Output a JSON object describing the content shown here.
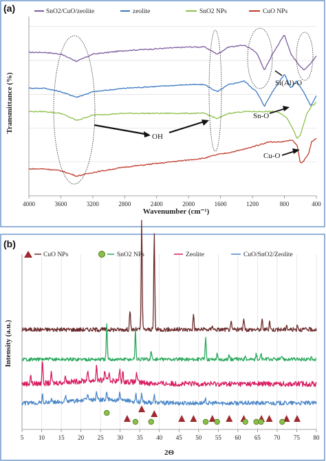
{
  "chart_data": [
    {
      "panel": "(a)",
      "type": "line",
      "xlabel": "Wavenumber (cm⁻¹)",
      "ylabel": "Transmittance (%)",
      "xlim": [
        4000,
        400
      ],
      "x_reversed": true,
      "x_ticks": [
        4000,
        3600,
        3200,
        2800,
        2400,
        2000,
        1600,
        1200,
        800,
        400
      ],
      "grid": "horizontal",
      "legend_position": "top",
      "series": [
        {
          "name": "SnO2/CuO/zeolite",
          "color": "#7b5a9e",
          "offset": 0.8,
          "points": [
            [
              4000,
              0.8
            ],
            [
              3800,
              0.8
            ],
            [
              3600,
              0.79
            ],
            [
              3400,
              0.75
            ],
            [
              3200,
              0.79
            ],
            [
              2800,
              0.81
            ],
            [
              2400,
              0.82
            ],
            [
              2000,
              0.83
            ],
            [
              1800,
              0.83
            ],
            [
              1640,
              0.79
            ],
            [
              1500,
              0.83
            ],
            [
              1300,
              0.84
            ],
            [
              1150,
              0.8
            ],
            [
              1050,
              0.7
            ],
            [
              950,
              0.79
            ],
            [
              800,
              0.9
            ],
            [
              720,
              0.79
            ],
            [
              650,
              0.75
            ],
            [
              560,
              0.7
            ],
            [
              470,
              0.74
            ],
            [
              400,
              0.78
            ]
          ]
        },
        {
          "name": "zeolite",
          "color": "#3b78c0",
          "offset": 0.6,
          "points": [
            [
              4000,
              0.6
            ],
            [
              3800,
              0.6
            ],
            [
              3600,
              0.58
            ],
            [
              3400,
              0.55
            ],
            [
              3200,
              0.58
            ],
            [
              2800,
              0.6
            ],
            [
              2400,
              0.61
            ],
            [
              2000,
              0.62
            ],
            [
              1800,
              0.62
            ],
            [
              1640,
              0.58
            ],
            [
              1500,
              0.62
            ],
            [
              1300,
              0.64
            ],
            [
              1150,
              0.58
            ],
            [
              1050,
              0.5
            ],
            [
              950,
              0.58
            ],
            [
              800,
              0.68
            ],
            [
              720,
              0.6
            ],
            [
              650,
              0.64
            ],
            [
              560,
              0.58
            ],
            [
              470,
              0.5
            ],
            [
              400,
              0.56
            ]
          ]
        },
        {
          "name": "SnO2 NPs",
          "color": "#8bbf4a",
          "offset": 0.47,
          "points": [
            [
              4000,
              0.47
            ],
            [
              3800,
              0.47
            ],
            [
              3600,
              0.46
            ],
            [
              3400,
              0.42
            ],
            [
              3200,
              0.45
            ],
            [
              2800,
              0.46
            ],
            [
              2400,
              0.46
            ],
            [
              2000,
              0.46
            ],
            [
              1800,
              0.46
            ],
            [
              1640,
              0.43
            ],
            [
              1500,
              0.46
            ],
            [
              1300,
              0.47
            ],
            [
              1100,
              0.47
            ],
            [
              900,
              0.47
            ],
            [
              780,
              0.44
            ],
            [
              700,
              0.38
            ],
            [
              640,
              0.32
            ],
            [
              600,
              0.34
            ],
            [
              520,
              0.46
            ],
            [
              460,
              0.5
            ],
            [
              400,
              0.52
            ]
          ]
        },
        {
          "name": "CuO NPs",
          "color": "#c0392b",
          "offset": 0.15,
          "points": [
            [
              4000,
              0.15
            ],
            [
              3800,
              0.15
            ],
            [
              3600,
              0.14
            ],
            [
              3400,
              0.11
            ],
            [
              3200,
              0.13
            ],
            [
              2800,
              0.16
            ],
            [
              2400,
              0.18
            ],
            [
              2000,
              0.2
            ],
            [
              1800,
              0.21
            ],
            [
              1640,
              0.23
            ],
            [
              1500,
              0.24
            ],
            [
              1300,
              0.26
            ],
            [
              1150,
              0.28
            ],
            [
              1000,
              0.3
            ],
            [
              850,
              0.3
            ],
            [
              700,
              0.31
            ],
            [
              640,
              0.28
            ],
            [
              600,
              0.18
            ],
            [
              550,
              0.2
            ],
            [
              500,
              0.23
            ],
            [
              460,
              0.3
            ],
            [
              400,
              0.32
            ]
          ]
        }
      ],
      "annotations": [
        {
          "text": "OH",
          "x": 2300,
          "y": 0.28
        },
        {
          "text": "Si(Al)-O",
          "x": 820,
          "y": 0.58
        },
        {
          "text": "Sn-O",
          "x": 820,
          "y": 0.39
        },
        {
          "text": "Cu-O",
          "x": 820,
          "y": 0.18
        }
      ]
    },
    {
      "panel": "(b)",
      "type": "line",
      "xlabel": "2Θ",
      "ylabel": "Intensity (a.u.)",
      "xlim": [
        5,
        80
      ],
      "x_ticks": [
        5,
        10,
        15,
        20,
        25,
        30,
        35,
        40,
        45,
        50,
        55,
        60,
        65,
        70,
        75,
        80
      ],
      "grid": "vertical",
      "legend_position": "top",
      "series": [
        {
          "name": "CuO NPs",
          "color": "#6b2a2a",
          "offset": 0.57,
          "noise": 0.012,
          "peaks": [
            [
              32.5,
              0.11
            ],
            [
              35.5,
              0.62
            ],
            [
              38.7,
              0.55
            ],
            [
              48.7,
              0.09
            ],
            [
              53.5,
              0.03
            ],
            [
              58.3,
              0.04
            ],
            [
              61.5,
              0.07
            ],
            [
              66.2,
              0.06
            ],
            [
              68.1,
              0.05
            ],
            [
              72.4,
              0.03
            ],
            [
              75.2,
              0.03
            ]
          ]
        },
        {
          "name": "SnO2 NPs",
          "color": "#27a85a",
          "offset": 0.4,
          "noise": 0.01,
          "peaks": [
            [
              26.6,
              0.2
            ],
            [
              33.9,
              0.17
            ],
            [
              37.9,
              0.05
            ],
            [
              51.8,
              0.13
            ],
            [
              54.7,
              0.03
            ],
            [
              57.8,
              0.03
            ],
            [
              61.9,
              0.03
            ],
            [
              64.7,
              0.03
            ],
            [
              65.9,
              0.03
            ],
            [
              71.3,
              0.02
            ],
            [
              78.7,
              0.02
            ]
          ]
        },
        {
          "name": "Zeolite",
          "color": "#d81b60",
          "offset": 0.26,
          "noise": 0.015,
          "peaks": [
            [
              7.2,
              0.05
            ],
            [
              10.2,
              0.14
            ],
            [
              12.5,
              0.06
            ],
            [
              16.1,
              0.04
            ],
            [
              21.7,
              0.06
            ],
            [
              24.0,
              0.09
            ],
            [
              26.1,
              0.06
            ],
            [
              27.2,
              0.05
            ],
            [
              29.9,
              0.07
            ],
            [
              30.7,
              0.05
            ],
            [
              34.2,
              0.06
            ]
          ]
        },
        {
          "name": "CuO/SnO2/Zeolite",
          "color": "#4a86c8",
          "offset": 0.15,
          "noise": 0.012,
          "peaks": [
            [
              10.2,
              0.05
            ],
            [
              12.5,
              0.03
            ],
            [
              16.1,
              0.03
            ],
            [
              21.7,
              0.04
            ],
            [
              24.0,
              0.05
            ],
            [
              26.6,
              0.05
            ],
            [
              29.9,
              0.04
            ],
            [
              34.0,
              0.05
            ],
            [
              35.5,
              0.04
            ],
            [
              38.7,
              0.04
            ],
            [
              51.8,
              0.02
            ]
          ]
        }
      ],
      "markers": {
        "cuo_triangles": [
          31.8,
          35.5,
          38.7,
          45.7,
          48.7,
          53.5,
          57.8,
          61.5,
          66.0,
          68.0,
          72.4,
          75.1
        ],
        "sno2_circles": [
          26.6,
          33.9,
          37.9,
          51.8,
          54.7,
          61.9,
          64.7,
          65.9,
          71.3
        ]
      }
    }
  ],
  "legend_a": {
    "item1": "SnO2/CuO/zeolite",
    "item2": "zeolite",
    "item3": "SnO2 NPs",
    "item4": "CuO NPs"
  },
  "legend_b": {
    "item1": "CuO NPs",
    "item2": "SnO2 NPs",
    "item3": "Zeolite",
    "item4": "CuO/SnO2/Zeolite"
  },
  "labels": {
    "panel_a": "(a)",
    "panel_b": "(b)",
    "xlabel_a": "Wavenumber (cm⁻¹)",
    "ylabel_a": "Transmittance (%)",
    "xlabel_b": "2Θ",
    "ylabel_b": "Intensity (a.u.)",
    "oh": "OH",
    "sialo": "Si(Al)-O",
    "sno": "Sn-O",
    "cuo": "Cu-O"
  },
  "colors": {
    "frame": "#4a7fc0",
    "cuo_marker": "#a0282e",
    "sno2_marker": "#8bbf4a"
  }
}
